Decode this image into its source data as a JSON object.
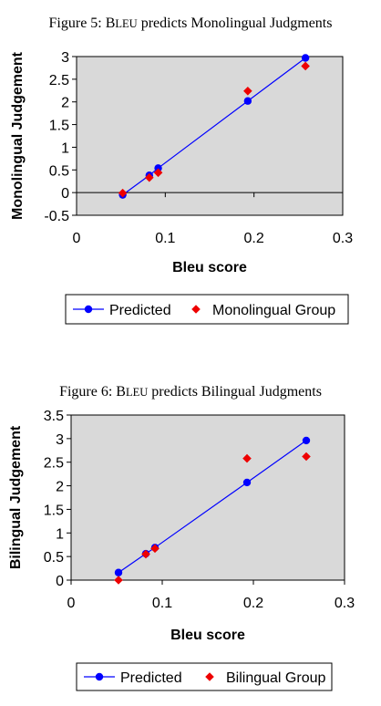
{
  "figures": [
    {
      "caption": {
        "prefix": "Figure 5: B",
        "smallcaps": "LEU",
        "suffix": " predicts Monolingual Judgments"
      }
    },
    {
      "caption": {
        "prefix": "Figure 6: B",
        "smallcaps": "LEU",
        "suffix": " predicts Bilingual Judgments"
      }
    }
  ],
  "colors": {
    "predicted": "#0000ff",
    "group": "#ee0000",
    "plot_bg": "#d9d9d9"
  },
  "icons": {
    "predicted_marker": "circle-line-marker",
    "group_marker": "diamond-marker"
  },
  "chart_data": [
    {
      "type": "scatter",
      "title": "",
      "xlabel": "Bleu score",
      "ylabel": "Monolingual Judgement",
      "xlim": [
        0,
        0.3
      ],
      "ylim": [
        -0.5,
        3
      ],
      "xticks": [
        0,
        0.1,
        0.2,
        0.3
      ],
      "xtick_labels": [
        "0",
        "0.1",
        "0.2",
        "0.3"
      ],
      "yticks": [
        -0.5,
        0,
        0.5,
        1,
        1.5,
        2,
        2.5,
        3
      ],
      "ytick_labels": [
        "-0.5",
        "0",
        "0.5",
        "1",
        "1.5",
        "2",
        "2.5",
        "3"
      ],
      "grid": false,
      "legend_position": "bottom",
      "series": [
        {
          "name": "Predicted",
          "style": "line+circle",
          "x": [
            0.052,
            0.082,
            0.092,
            0.193,
            0.258
          ],
          "y": [
            -0.05,
            0.38,
            0.54,
            2.02,
            2.97
          ]
        },
        {
          "name": "Monolingual Group",
          "style": "diamond",
          "x": [
            0.052,
            0.082,
            0.092,
            0.193,
            0.258
          ],
          "y": [
            -0.01,
            0.33,
            0.44,
            2.24,
            2.79
          ]
        }
      ]
    },
    {
      "type": "scatter",
      "title": "",
      "xlabel": "Bleu score",
      "ylabel": "Bilingual Judgement",
      "xlim": [
        0,
        0.3
      ],
      "ylim": [
        0,
        3.5
      ],
      "xticks": [
        0,
        0.1,
        0.2,
        0.3
      ],
      "xtick_labels": [
        "0",
        "0.1",
        "0.2",
        "0.3"
      ],
      "yticks": [
        0,
        0.5,
        1,
        1.5,
        2,
        2.5,
        3,
        3.5
      ],
      "ytick_labels": [
        "0",
        "0.5",
        "1",
        "1.5",
        "2",
        "2.5",
        "3",
        "3.5"
      ],
      "grid": false,
      "legend_position": "bottom",
      "series": [
        {
          "name": "Predicted",
          "style": "line+circle",
          "x": [
            0.052,
            0.082,
            0.092,
            0.193,
            0.258
          ],
          "y": [
            0.16,
            0.56,
            0.69,
            2.07,
            2.96
          ]
        },
        {
          "name": "Bilingual Group",
          "style": "diamond",
          "x": [
            0.052,
            0.082,
            0.092,
            0.193,
            0.258
          ],
          "y": [
            0.0,
            0.55,
            0.67,
            2.58,
            2.62
          ]
        }
      ]
    }
  ]
}
